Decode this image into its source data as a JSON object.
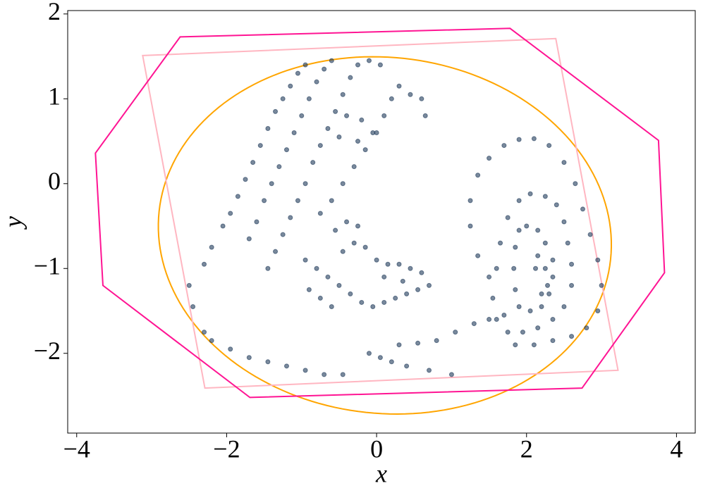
{
  "chart_data": {
    "type": "scatter",
    "x_label": "x",
    "y_label": "y",
    "xlim": [
      -4.12,
      4.25
    ],
    "ylim": [
      -2.94,
      2.04
    ],
    "xticks": [
      {
        "value": -4,
        "label": "−4"
      },
      {
        "value": -2,
        "label": "−2"
      },
      0,
      2,
      4
    ],
    "yticks": [
      {
        "value": -2,
        "label": "−2"
      },
      {
        "value": -1,
        "label": "−1"
      },
      0,
      1,
      2
    ],
    "series": [
      {
        "type": "scatter",
        "color": "#1f3b5a",
        "x": [
          -2.3,
          -2.2,
          -2.05,
          -1.95,
          -1.85,
          -1.75,
          -1.65,
          -1.55,
          -1.45,
          -1.35,
          -1.25,
          -1.15,
          -1.05,
          -0.95,
          -1.7,
          -1.6,
          -1.5,
          -1.4,
          -1.3,
          -1.2,
          -1.1,
          -1.0,
          -0.9,
          -0.8,
          -0.7,
          -0.6,
          -1.45,
          -1.35,
          -1.25,
          -1.15,
          -1.05,
          -0.95,
          -0.85,
          -0.75,
          -0.65,
          -0.55,
          -0.45,
          -0.35,
          -0.25,
          -0.1,
          0.05,
          -0.75,
          -0.6,
          -0.45,
          -0.3,
          -0.15,
          0.0,
          0.1,
          0.2,
          0.3,
          0.45,
          0.6,
          0.65,
          -0.4,
          -0.2,
          -0.05,
          -0.25,
          -0.5,
          -0.95,
          -0.8,
          -0.65,
          -0.5,
          -0.35,
          -0.2,
          -0.05,
          0.1,
          0.25,
          0.4,
          0.55,
          0.7,
          -0.9,
          -0.75,
          -0.6,
          -0.45,
          -0.3,
          -0.15,
          0.0,
          0.15,
          0.3,
          0.45,
          0.6,
          -0.55,
          -0.4,
          -0.25,
          0.1,
          0.35,
          -2.5,
          -2.45,
          -2.3,
          -2.2,
          -1.95,
          -1.7,
          -1.45,
          -1.2,
          -0.95,
          -0.7,
          -0.45,
          -0.1,
          0.05,
          0.2,
          0.4,
          0.7,
          1.0,
          0.3,
          0.55,
          0.8,
          1.05,
          1.3,
          1.5,
          1.7,
          1.25,
          1.35,
          1.5,
          1.7,
          1.9,
          2.1,
          2.3,
          2.5,
          2.65,
          2.75,
          2.85,
          2.95,
          3.0,
          2.95,
          2.8,
          2.6,
          2.35,
          2.1,
          1.85,
          1.25,
          1.35,
          1.5,
          1.6,
          1.65,
          1.75,
          1.9,
          2.05,
          2.25,
          2.4,
          2.5,
          2.55,
          2.6,
          2.6,
          2.5,
          2.35,
          2.15,
          1.95,
          1.75,
          1.6,
          1.55,
          1.85,
          1.9,
          2.0,
          2.15,
          2.25,
          2.35,
          2.35,
          2.3,
          2.2,
          2.05,
          1.9,
          1.85,
          1.83,
          2.15,
          2.25,
          2.28,
          2.2,
          2.12
        ],
        "y": [
          -0.95,
          -0.75,
          -0.5,
          -0.35,
          -0.15,
          0.05,
          0.25,
          0.45,
          0.65,
          0.85,
          1.0,
          1.15,
          1.3,
          1.4,
          -0.65,
          -0.45,
          -0.2,
          0.0,
          0.2,
          0.4,
          0.6,
          0.8,
          1.0,
          1.2,
          1.35,
          1.45,
          -1.0,
          -0.8,
          -0.6,
          -0.4,
          -0.2,
          0.0,
          0.25,
          0.45,
          0.65,
          0.85,
          1.05,
          1.25,
          1.4,
          1.45,
          1.4,
          -0.35,
          -0.2,
          0.0,
          0.2,
          0.4,
          0.6,
          0.8,
          1.0,
          1.15,
          1.05,
          1.0,
          0.8,
          0.8,
          0.75,
          0.6,
          0.5,
          0.55,
          -0.9,
          -1.0,
          -1.1,
          -1.2,
          -1.3,
          -1.4,
          -1.45,
          -1.4,
          -1.35,
          -1.3,
          -1.25,
          -1.2,
          -1.25,
          -1.35,
          -1.45,
          -0.8,
          -0.7,
          -0.75,
          -0.9,
          -0.95,
          -0.95,
          -1.0,
          -1.05,
          -0.55,
          -0.45,
          -0.5,
          -1.1,
          -1.15,
          -1.2,
          -1.45,
          -1.75,
          -1.85,
          -1.95,
          -2.05,
          -2.1,
          -2.15,
          -2.2,
          -2.25,
          -2.25,
          -2.0,
          -2.05,
          -2.1,
          -2.15,
          -2.2,
          -2.25,
          -1.9,
          -1.88,
          -1.85,
          -1.75,
          -1.65,
          -1.6,
          -1.55,
          -0.2,
          0.1,
          0.3,
          0.45,
          0.52,
          0.53,
          0.45,
          0.25,
          0.0,
          -0.3,
          -0.6,
          -0.9,
          -1.2,
          -1.5,
          -1.7,
          -1.8,
          -1.85,
          -1.9,
          -1.9,
          -0.5,
          -0.85,
          -1.1,
          -1.0,
          -0.7,
          -0.4,
          -0.2,
          -0.12,
          -0.15,
          -0.25,
          -0.45,
          -0.7,
          -0.95,
          -1.2,
          -1.45,
          -1.6,
          -1.7,
          -1.75,
          -1.75,
          -1.6,
          -1.35,
          -0.75,
          -0.55,
          -0.5,
          -0.55,
          -0.7,
          -0.9,
          -1.1,
          -1.3,
          -1.45,
          -1.5,
          -1.45,
          -1.25,
          -1.0,
          -0.85,
          -1.0,
          -1.2,
          -1.3,
          -1.0
        ]
      },
      {
        "type": "polygon",
        "color": "#ff1493",
        "x": [
          -2.62,
          1.78,
          3.76,
          3.84,
          2.74,
          -1.69,
          -3.65,
          -3.75
        ],
        "y": [
          1.73,
          1.83,
          0.51,
          -1.05,
          -2.41,
          -2.52,
          -1.2,
          0.36
        ]
      },
      {
        "type": "polygon",
        "color": "#ffb6c1",
        "x": [
          -3.12,
          2.39,
          3.22,
          -2.29
        ],
        "y": [
          1.51,
          1.71,
          -2.2,
          -2.41
        ]
      }
    ],
    "ellipse": {
      "color": "#ffa500",
      "center": [
        0.11,
        -0.61
      ],
      "width": 6.05,
      "height": 4.2,
      "angle": -4
    }
  }
}
